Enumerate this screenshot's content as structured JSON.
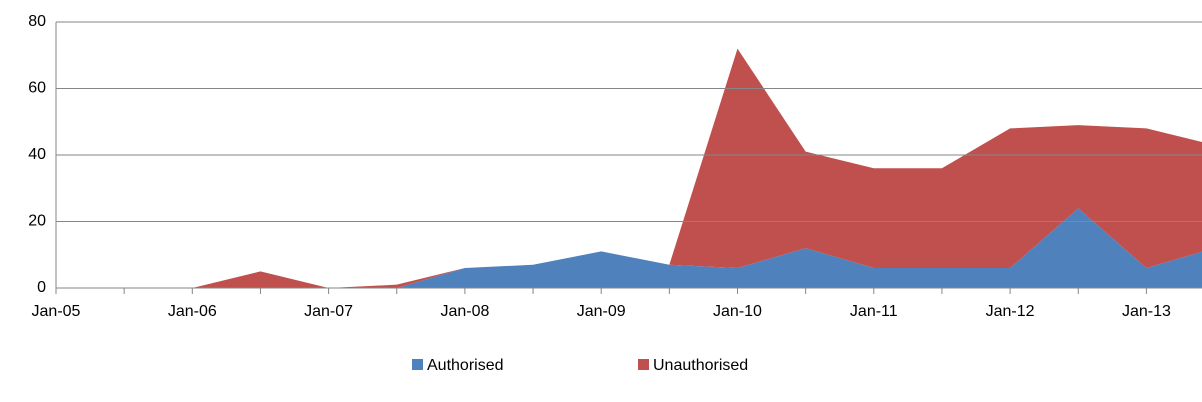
{
  "chart_data": {
    "type": "stacked_area",
    "categories": [
      "Jan-05",
      null,
      "Jan-06",
      null,
      "Jan-07",
      null,
      "Jan-08",
      null,
      "Jan-09",
      null,
      "Jan-10",
      null,
      "Jan-11",
      null,
      "Jan-12",
      null,
      "Jan-13",
      null
    ],
    "series": [
      {
        "name": "Authorised",
        "color": "#4f81bd",
        "values": [
          0,
          0,
          0,
          0,
          0,
          0,
          6,
          7,
          11,
          7,
          6,
          12,
          6,
          6,
          6,
          24,
          6,
          12
        ]
      },
      {
        "name": "Unauthorised",
        "color": "#c0504d",
        "values": [
          0,
          0,
          0,
          5,
          0,
          1,
          0,
          0,
          0,
          0,
          66,
          29,
          30,
          30,
          42,
          25,
          42,
          31
        ]
      }
    ],
    "ylim": [
      0,
      80
    ],
    "yticks": [
      0,
      20,
      40,
      60,
      80
    ],
    "grid": true,
    "legend": "bottom"
  }
}
